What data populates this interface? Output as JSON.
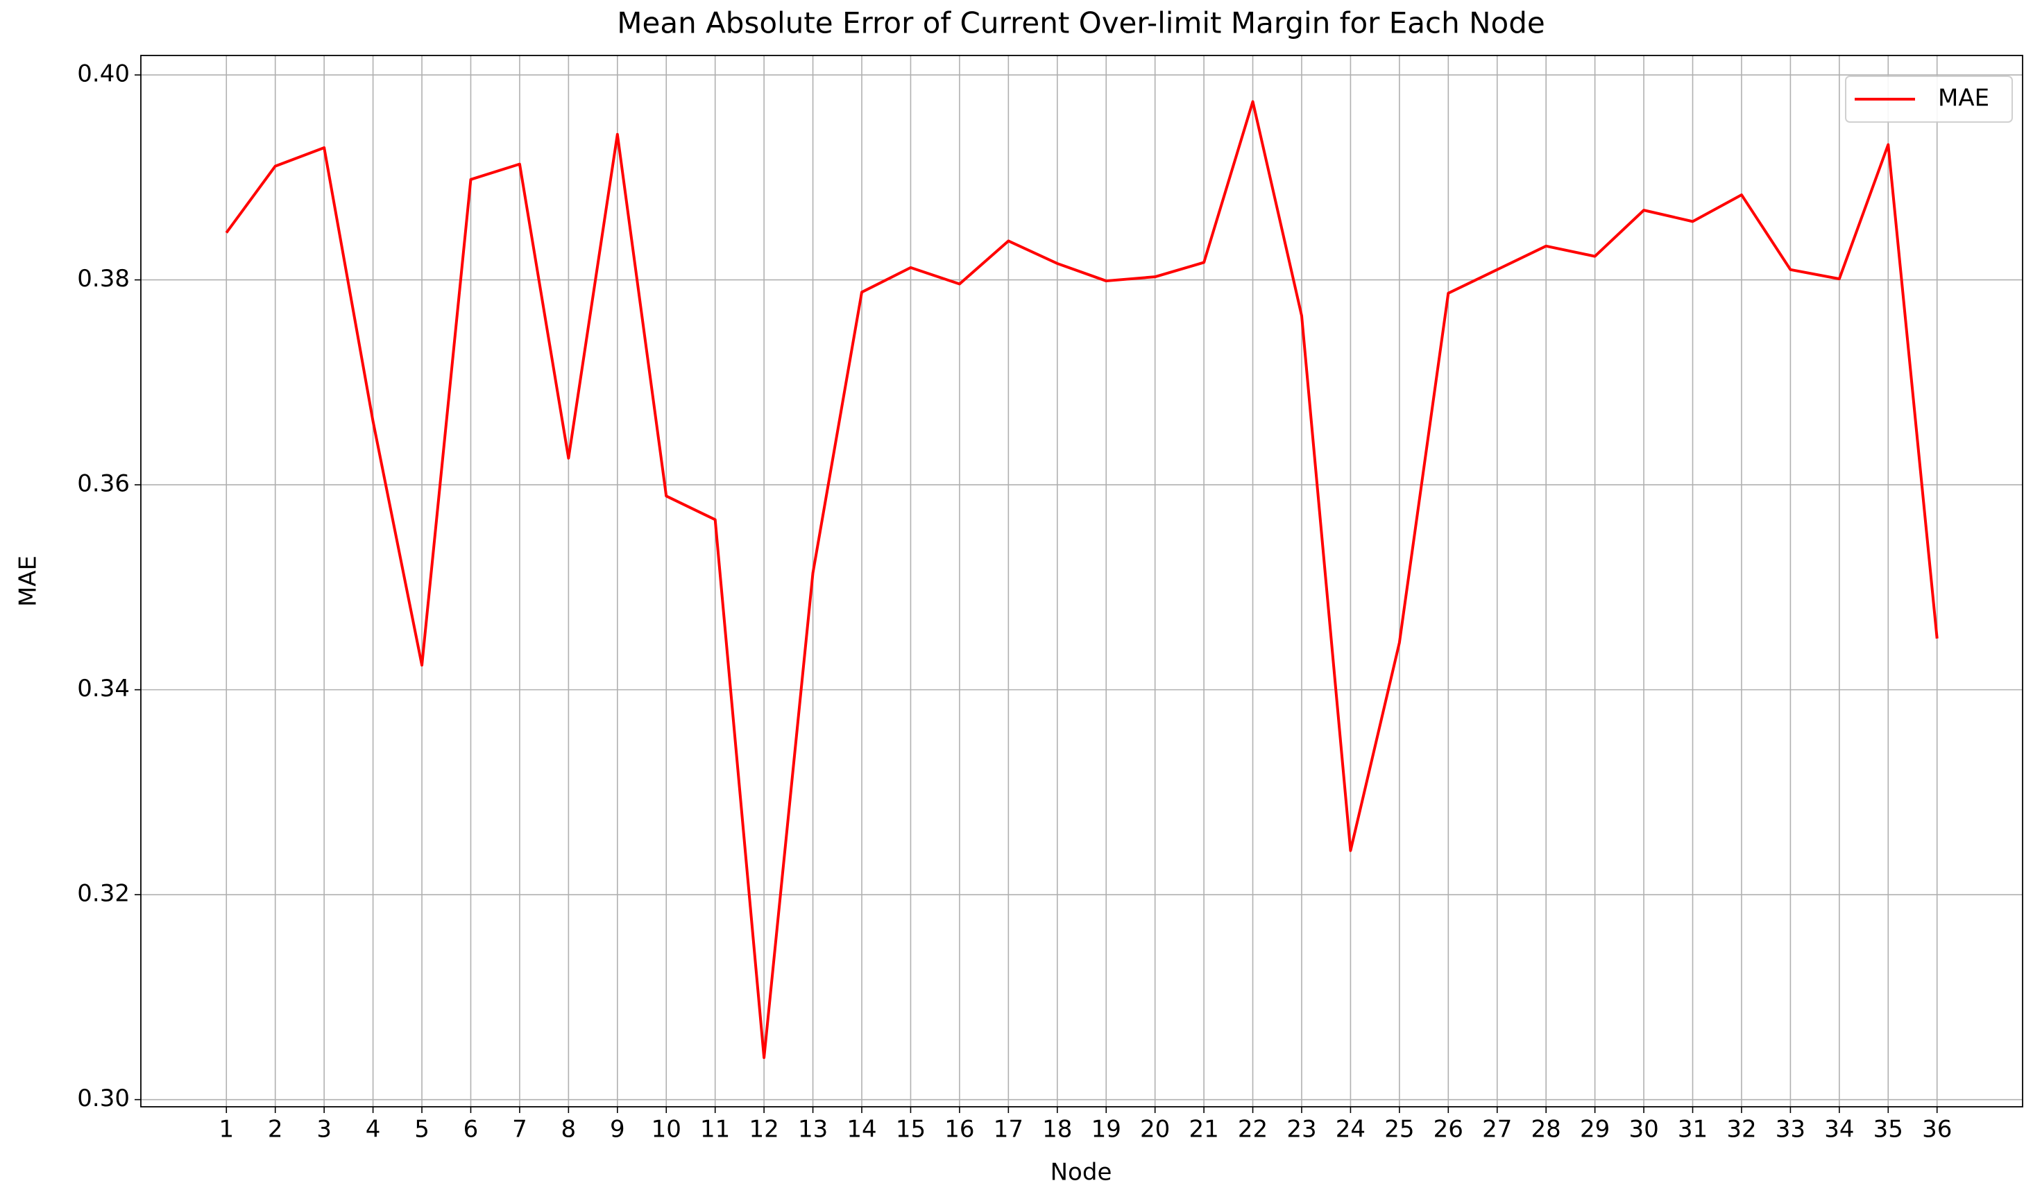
{
  "chart_data": {
    "type": "line",
    "title": "Mean Absolute Error of Current Over-limit Margin for Each Node",
    "xlabel": "Node",
    "ylabel": "MAE",
    "x": [
      1,
      2,
      3,
      4,
      5,
      6,
      7,
      8,
      9,
      10,
      11,
      12,
      13,
      14,
      15,
      16,
      17,
      18,
      19,
      20,
      21,
      22,
      23,
      24,
      25,
      26,
      27,
      28,
      29,
      30,
      31,
      32,
      33,
      34,
      35,
      36
    ],
    "series": [
      {
        "name": "MAE",
        "color": "#ff0000",
        "values": [
          0.3846,
          0.3911,
          0.3929,
          0.3662,
          0.3424,
          0.3898,
          0.3913,
          0.3626,
          0.3942,
          0.3589,
          0.3566,
          0.3041,
          0.3514,
          0.3788,
          0.3812,
          0.3796,
          0.3838,
          0.3816,
          0.3799,
          0.3803,
          0.3817,
          0.3974,
          0.3765,
          0.3243,
          0.3446,
          0.3787,
          0.381,
          0.3833,
          0.3823,
          0.3868,
          0.3857,
          0.3883,
          0.381,
          0.3801,
          0.3932,
          0.345
        ]
      }
    ],
    "xlim": [
      -0.75,
      37.75
    ],
    "xticks": [
      1,
      2,
      3,
      4,
      5,
      6,
      7,
      8,
      9,
      10,
      11,
      12,
      13,
      14,
      15,
      16,
      17,
      18,
      19,
      20,
      21,
      22,
      23,
      24,
      25,
      26,
      27,
      28,
      29,
      30,
      31,
      32,
      33,
      34,
      35,
      36
    ],
    "ylim": [
      0.2993,
      0.4019
    ],
    "yticks": [
      {
        "value": 0.3,
        "label": "0.30"
      },
      0.32,
      0.34,
      0.36,
      0.38,
      {
        "value": 0.4,
        "label": "0.40"
      }
    ],
    "grid": true,
    "legend": "upper-right"
  }
}
